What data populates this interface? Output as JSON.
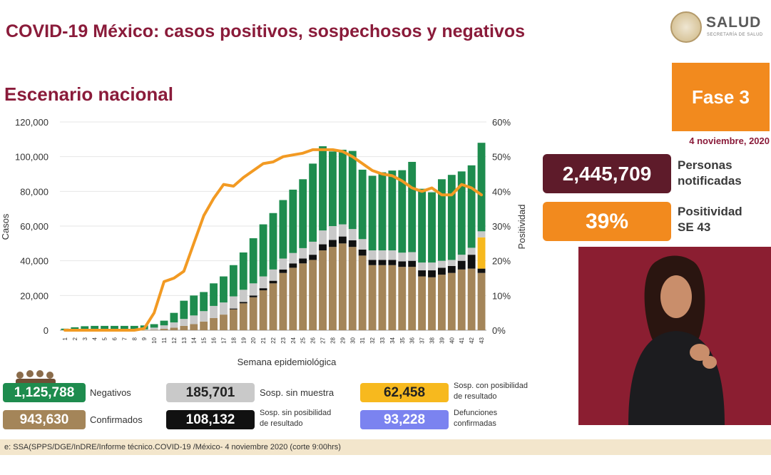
{
  "header": {
    "title": "COVID-19 México: casos positivos, sospechosos y negativos",
    "subtitle": "Escenario nacional"
  },
  "logo": {
    "name": "SALUD",
    "sub": "SECRETARÍA DE SALUD"
  },
  "phase": {
    "label": "Fase 3",
    "date": "4 noviembre, 2020"
  },
  "stats": {
    "notified_value": "2,445,709",
    "notified_label_1": "Personas",
    "notified_label_2": "notificadas",
    "positivity_value": "39%",
    "positivity_label_1": "Positividad",
    "positivity_label_2": "SE 43"
  },
  "legend": {
    "negativos": {
      "value": "1,125,788",
      "label": "Negativos",
      "color": "#1e8c4e"
    },
    "sin_muestra": {
      "value": "185,701",
      "label": "Sosp. sin muestra",
      "color": "#c9c9c9"
    },
    "con_posibilidad": {
      "value": "62,458",
      "label_1": "Sosp. con posibilidad",
      "label_2": "de resultado",
      "color": "#f7b91e"
    },
    "confirmados": {
      "value": "943,630",
      "label": "Confirmados",
      "color": "#a48559"
    },
    "sin_posibilidad": {
      "value": "108,132",
      "label_1": "Sosp. sin posibilidad",
      "label_2": "de resultado",
      "color": "#111111"
    },
    "defunciones": {
      "value": "93,228",
      "label_1": "Defunciones",
      "label_2": "confirmadas",
      "color": "#7b83f0"
    }
  },
  "footer": {
    "source": "e: SSA(SPPS/DGE/InDRE/Informe técnico.COVID-19 /México- 4 noviembre 2020 (corte 9:00hrs)"
  },
  "chart_data": {
    "type": "bar",
    "xlabel": "Semana epidemiológica",
    "ylabel": "Casos",
    "y2label": "Positividad",
    "ylim": [
      0,
      120000
    ],
    "y2lim": [
      0,
      60
    ],
    "yticks": [
      "0",
      "20,000",
      "40,000",
      "60,000",
      "80,000",
      "100,000",
      "120,000"
    ],
    "y2ticks": [
      "0%",
      "10%",
      "20%",
      "30%",
      "40%",
      "50%",
      "60%"
    ],
    "categories": [
      "1",
      "2",
      "3",
      "4",
      "5",
      "6",
      "7",
      "8",
      "9",
      "10",
      "11",
      "12",
      "13",
      "14",
      "15",
      "16",
      "17",
      "18",
      "19",
      "20",
      "21",
      "22",
      "23",
      "24",
      "25",
      "26",
      "27",
      "28",
      "29",
      "30",
      "31",
      "32",
      "33",
      "34",
      "35",
      "36",
      "37",
      "38",
      "39",
      "40",
      "41",
      "42",
      "43"
    ],
    "series": [
      {
        "name": "Confirmados",
        "color": "#a48559",
        "values": [
          0,
          0,
          0,
          0,
          0,
          0,
          0,
          0,
          50,
          300,
          800,
          1500,
          2500,
          3500,
          5000,
          7000,
          9000,
          12000,
          15500,
          19000,
          23000,
          27000,
          33000,
          36000,
          38500,
          40500,
          46000,
          48000,
          50000,
          48000,
          43000,
          37500,
          37500,
          37500,
          36500,
          36500,
          31000,
          30500,
          32000,
          33000,
          35000,
          35500,
          33000
        ]
      },
      {
        "name": "Sosp. sin posibilidad de resultado",
        "color": "#111111",
        "values": [
          0,
          0,
          0,
          0,
          0,
          0,
          0,
          0,
          0,
          0,
          0,
          0,
          0,
          0,
          0,
          0,
          0,
          500,
          800,
          1000,
          1200,
          1500,
          2000,
          2500,
          2800,
          3000,
          3500,
          4000,
          4000,
          3800,
          3500,
          3000,
          3000,
          3000,
          3200,
          3500,
          3500,
          4000,
          4000,
          4000,
          5000,
          8000,
          2500
        ]
      },
      {
        "name": "Sosp. con posibilidad de resultado",
        "color": "#f7b91e",
        "values": [
          0,
          0,
          0,
          0,
          0,
          0,
          0,
          0,
          0,
          0,
          0,
          0,
          0,
          0,
          0,
          0,
          0,
          0,
          0,
          0,
          0,
          0,
          0,
          0,
          0,
          0,
          0,
          0,
          0,
          0,
          0,
          0,
          0,
          0,
          0,
          0,
          0,
          0,
          0,
          0,
          0,
          0,
          18000
        ]
      },
      {
        "name": "Sosp. sin muestra",
        "color": "#c9c9c9",
        "values": [
          100,
          200,
          300,
          300,
          300,
          300,
          300,
          300,
          500,
          1200,
          2000,
          3000,
          4000,
          5000,
          6000,
          7000,
          7000,
          7000,
          7000,
          7000,
          6800,
          6500,
          6300,
          6000,
          6000,
          7500,
          8000,
          8000,
          7000,
          6500,
          6000,
          5500,
          5500,
          5500,
          5000,
          5000,
          4500,
          4500,
          4000,
          3500,
          3500,
          4000,
          3500
        ]
      },
      {
        "name": "Negativos",
        "color": "#1e8c4e",
        "values": [
          800,
          1500,
          2000,
          2200,
          2200,
          2200,
          2200,
          2200,
          2200,
          2000,
          2700,
          5500,
          10500,
          11500,
          11000,
          13000,
          15000,
          18000,
          21500,
          26000,
          30000,
          32500,
          33700,
          36500,
          39700,
          45000,
          48500,
          43000,
          43000,
          45000,
          40000,
          43000,
          45000,
          46000,
          47500,
          52000,
          42500,
          40500,
          47000,
          49000,
          48000,
          47500,
          51000
        ]
      }
    ],
    "line": {
      "name": "Positividad",
      "color": "#f29a23",
      "unit": "%",
      "values": [
        0,
        0,
        0,
        0,
        0,
        0,
        0,
        0,
        0.5,
        5,
        14,
        15,
        17,
        25,
        33,
        38,
        42,
        41.5,
        44,
        46,
        48,
        48.5,
        50,
        50.5,
        51,
        52,
        52,
        52,
        51.5,
        50,
        48,
        46,
        45,
        44.5,
        43,
        41,
        40,
        41,
        39,
        39,
        42,
        41,
        39
      ]
    }
  }
}
